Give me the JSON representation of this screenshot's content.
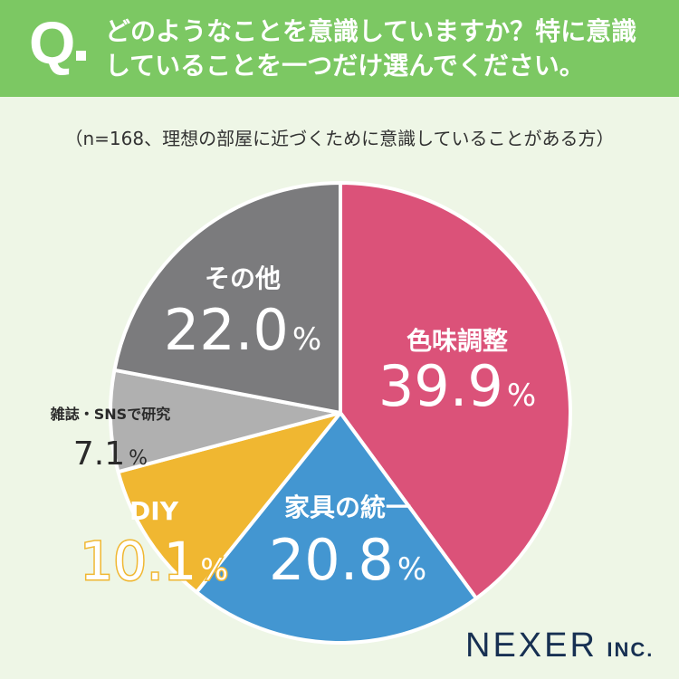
{
  "header": {
    "q_mark": "Q",
    "question_line1": "どのようなことを意識していますか？特に意識",
    "question_line2": "していることを一つだけ選んでください。"
  },
  "note": "（n=168、理想の部屋に近づくために意識していることがある方）",
  "chart_data": {
    "type": "pie",
    "unit": "%",
    "slices": [
      {
        "label": "色味調整",
        "value": 39.9,
        "display": "39.9",
        "color": "#db5279"
      },
      {
        "label": "家具の統一",
        "value": 20.8,
        "display": "20.8",
        "color": "#4396d1"
      },
      {
        "label": "DIY",
        "value": 10.1,
        "display": "10.1",
        "color": "#f0b731"
      },
      {
        "label": "雑誌・SNSで研究",
        "value": 7.1,
        "display": "7.1",
        "color": "#b0b0b0"
      },
      {
        "label": "その他",
        "value": 22.0,
        "display": "22.0",
        "color": "#7b7b7d"
      }
    ]
  },
  "logo": {
    "main": "NEXER",
    "sub": "INC."
  },
  "colors": {
    "header_bg": "#7cc863",
    "page_bg": "#eef6e6",
    "logo": "#173052"
  }
}
